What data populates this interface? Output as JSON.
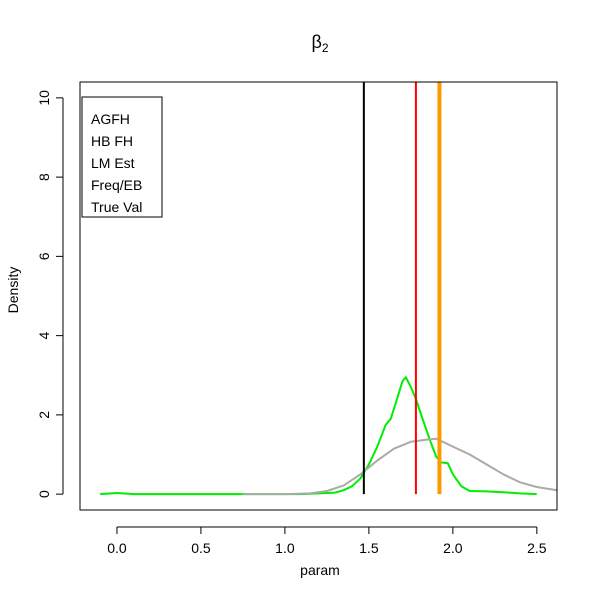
{
  "chart_data": {
    "type": "line",
    "title": "β",
    "title_subscript": "2",
    "xlabel": "param",
    "ylabel": "Density",
    "xlim": [
      -0.22,
      2.62
    ],
    "ylim": [
      -0.4,
      10.4
    ],
    "x_ticks": [
      0.0,
      0.5,
      1.0,
      1.5,
      2.0,
      2.5
    ],
    "x_tick_labels": [
      "0.0",
      "0.5",
      "1.0",
      "1.5",
      "2.0",
      "2.5"
    ],
    "y_ticks": [
      0,
      2,
      4,
      6,
      8,
      10
    ],
    "y_tick_labels": [
      "0",
      "2",
      "4",
      "6",
      "8",
      "10"
    ],
    "legend": {
      "placement": "top-left",
      "entries": [
        "AGFH",
        "HB FH",
        "LM Est",
        "Freq/EB",
        "True Val"
      ]
    },
    "series": [
      {
        "color": "#00ee00",
        "kind": "density",
        "points": [
          [
            -0.1,
            0.0
          ],
          [
            0.0,
            0.03
          ],
          [
            0.1,
            0.0
          ],
          [
            0.3,
            0.0
          ],
          [
            0.6,
            0.0
          ],
          [
            0.9,
            0.0
          ],
          [
            1.1,
            0.0
          ],
          [
            1.2,
            0.02
          ],
          [
            1.3,
            0.04
          ],
          [
            1.35,
            0.1
          ],
          [
            1.4,
            0.2
          ],
          [
            1.45,
            0.4
          ],
          [
            1.5,
            0.75
          ],
          [
            1.55,
            1.2
          ],
          [
            1.6,
            1.75
          ],
          [
            1.63,
            1.9
          ],
          [
            1.66,
            2.3
          ],
          [
            1.7,
            2.85
          ],
          [
            1.72,
            2.95
          ],
          [
            1.75,
            2.7
          ],
          [
            1.78,
            2.4
          ],
          [
            1.82,
            1.9
          ],
          [
            1.86,
            1.4
          ],
          [
            1.9,
            0.95
          ],
          [
            1.93,
            0.8
          ],
          [
            1.97,
            0.78
          ],
          [
            2.0,
            0.5
          ],
          [
            2.05,
            0.2
          ],
          [
            2.1,
            0.08
          ],
          [
            2.2,
            0.07
          ],
          [
            2.3,
            0.05
          ],
          [
            2.4,
            0.02
          ],
          [
            2.5,
            0.0
          ]
        ]
      },
      {
        "color": "#aaaaaa",
        "kind": "density",
        "points": [
          [
            0.75,
            0.0
          ],
          [
            1.0,
            0.0
          ],
          [
            1.15,
            0.02
          ],
          [
            1.25,
            0.08
          ],
          [
            1.35,
            0.22
          ],
          [
            1.45,
            0.5
          ],
          [
            1.55,
            0.85
          ],
          [
            1.65,
            1.15
          ],
          [
            1.75,
            1.32
          ],
          [
            1.85,
            1.38
          ],
          [
            1.9,
            1.4
          ],
          [
            1.95,
            1.3
          ],
          [
            2.0,
            1.2
          ],
          [
            2.1,
            1.0
          ],
          [
            2.2,
            0.75
          ],
          [
            2.3,
            0.5
          ],
          [
            2.4,
            0.3
          ],
          [
            2.5,
            0.18
          ],
          [
            2.62,
            0.1
          ]
        ]
      }
    ],
    "vertical_lines": [
      {
        "x": 1.47,
        "color": "#000000",
        "weight": "normal"
      },
      {
        "x": 1.78,
        "color": "#ff0000",
        "weight": "normal"
      },
      {
        "x": 1.92,
        "color": "#ff9900",
        "weight": "thick"
      }
    ]
  }
}
